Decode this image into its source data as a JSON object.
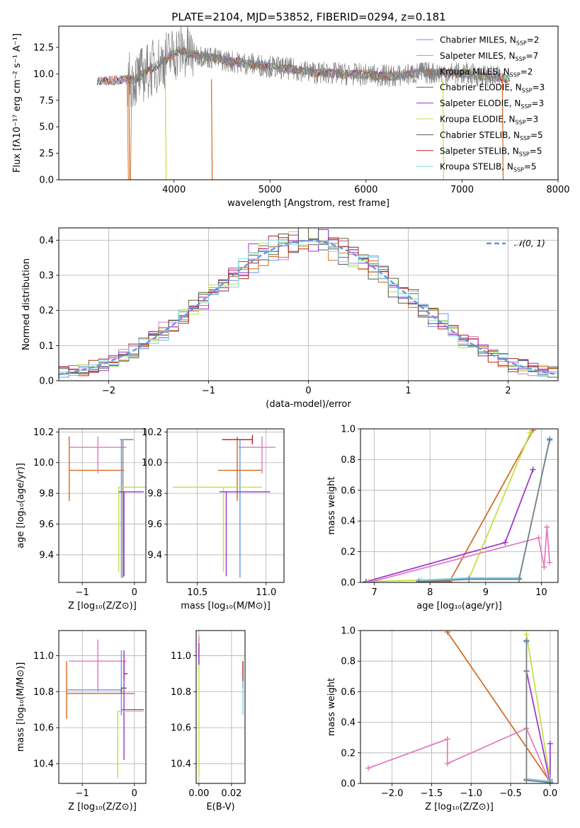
{
  "title": "PLATE=2104, MJD=53852, FIBERID=0294, z=0.181",
  "chart_data": [
    {
      "type": "line",
      "id": "spectrum",
      "xlabel": "wavelength [Angstrom, rest frame]",
      "ylabel": "Flux [fλ10⁻¹⁷ erg cm⁻² s⁻¹ A⁻¹]",
      "xlim": [
        2800,
        8000
      ],
      "ylim": [
        0,
        14.5
      ],
      "xticks": [
        4000,
        5000,
        6000,
        7000,
        8000
      ],
      "yticks": [
        0.0,
        2.5,
        5.0,
        7.5,
        10.0,
        12.5
      ],
      "xtick_labels": [
        "4000",
        "5000",
        "6000",
        "7000",
        "8000"
      ],
      "ytick_labels": [
        "0.0",
        "2.5",
        "5.0",
        "7.5",
        "10.0",
        "12.5"
      ],
      "data_range": [
        3200,
        7500
      ],
      "legend": [
        {
          "name": "Chabrier MILES, N",
          "sub": "SSP",
          "tail": "=2",
          "color": "#6495ed"
        },
        {
          "name": "Salpeter MILES, N",
          "sub": "SSP",
          "tail": "=7",
          "color": "#e377c2"
        },
        {
          "name": "Kroupa MILES, N",
          "sub": "SSP",
          "tail": "=2",
          "color": "#d2691e"
        },
        {
          "name": "Chabrier ELODIE, N",
          "sub": "SSP",
          "tail": "=3",
          "color": "#556b2f"
        },
        {
          "name": "Salpeter ELODIE, N",
          "sub": "SSP",
          "tail": "=3",
          "color": "#9932cc"
        },
        {
          "name": "Kroupa ELODIE, N",
          "sub": "SSP",
          "tail": "=3",
          "color": "#c0e040"
        },
        {
          "name": "Chabrier STELIB, N",
          "sub": "SSP",
          "tail": "=5",
          "color": "#555555"
        },
        {
          "name": "Salpeter STELIB, N",
          "sub": "SSP",
          "tail": "=5",
          "color": "#b22222"
        },
        {
          "name": "Kroupa STELIB, N",
          "sub": "SSP",
          "tail": "=5",
          "color": "#80d8e0"
        }
      ],
      "legend_position": "right"
    },
    {
      "type": "area",
      "id": "histogram",
      "xlabel": "(data-model)/error",
      "ylabel": "Normed distribution",
      "xlim": [
        -2.5,
        2.5
      ],
      "ylim": [
        0,
        0.435
      ],
      "xticks": [
        -2,
        -1,
        0,
        1,
        2
      ],
      "xtick_labels": [
        "−2",
        "−1",
        "0",
        "1",
        "2"
      ],
      "yticks": [
        0.0,
        0.1,
        0.2,
        0.3,
        0.4
      ],
      "ytick_labels": [
        "0.0",
        "0.1",
        "0.2",
        "0.3",
        "0.4"
      ],
      "legend": [
        {
          "name": "𝒩(0, 1)",
          "color": "#6495ed",
          "style": "dashed"
        }
      ],
      "legend_position": "top-right",
      "grid": true
    },
    {
      "type": "scatter",
      "id": "age-vs-Z",
      "xlabel": "Z [log₁₀(Z/Z⊙)]",
      "ylabel": "age  [log₁₀(age/yr)]",
      "xlim": [
        -1.45,
        0.22
      ],
      "ylim": [
        9.22,
        10.22
      ],
      "xticks": [
        -1,
        0
      ],
      "xtick_labels": [
        "−1",
        "0"
      ],
      "yticks": [
        9.4,
        9.6,
        9.8,
        10.0,
        10.2
      ],
      "ytick_labels": [
        "9.4",
        "9.6",
        "9.8",
        "10.0",
        "10.2"
      ],
      "points": [
        {
          "x": -1.25,
          "y": 9.95,
          "xerr": [
            0.0,
            1.05
          ],
          "yerr": [
            0.2,
            0.22
          ],
          "color": "#d2691e"
        },
        {
          "x": -0.7,
          "y": 10.1,
          "xerr": [
            0.55,
            0.55
          ],
          "yerr": [
            0.17,
            0.07
          ],
          "color": "#e377c2"
        },
        {
          "x": -0.25,
          "y": 10.15,
          "xerr": [
            0.03,
            0.22
          ],
          "yerr": [
            0.9,
            0.0
          ],
          "color": "#6495ed"
        },
        {
          "x": -0.22,
          "y": 10.15,
          "xerr": [
            0.0,
            0.2
          ],
          "yerr": [
            0.9,
            0.0
          ],
          "color": "#808080"
        },
        {
          "x": -0.3,
          "y": 9.84,
          "xerr": [
            0.0,
            0.55
          ],
          "yerr": [
            0.55,
            0.0
          ],
          "color": "#c0e040"
        },
        {
          "x": -0.2,
          "y": 9.81,
          "xerr": [
            0.1,
            0.38
          ],
          "yerr": [
            0.55,
            0.0
          ],
          "color": "#9932cc"
        }
      ]
    },
    {
      "type": "scatter",
      "id": "age-vs-mass",
      "xlabel": "mass [log₁₀(M/M⊙)]",
      "ylabel": "",
      "xlim": [
        10.28,
        11.13
      ],
      "ylim": [
        9.22,
        10.22
      ],
      "xticks": [
        10.5,
        11.0
      ],
      "xtick_labels": [
        "10.5",
        "11.0"
      ],
      "yticks": [
        9.4,
        9.6,
        9.8,
        10.0,
        10.2
      ],
      "ytick_labels": [
        "9.4",
        "9.6",
        "9.8",
        "10.0",
        "10.2"
      ],
      "points": [
        {
          "x": 10.79,
          "y": 9.95,
          "xerr": [
            0.14,
            0.18
          ],
          "yerr": [
            0.2,
            0.22
          ],
          "color": "#d2691e"
        },
        {
          "x": 10.97,
          "y": 10.1,
          "xerr": [
            0.17,
            0.1
          ],
          "yerr": [
            0.17,
            0.07
          ],
          "color": "#e377c2"
        },
        {
          "x": 10.81,
          "y": 10.15,
          "xerr": [
            0.12,
            0.08
          ],
          "yerr": [
            0.9,
            0.0
          ],
          "color": "#6495ed"
        },
        {
          "x": 10.9,
          "y": 10.15,
          "xerr": [
            0.22,
            0.0
          ],
          "yerr": [
            0.03,
            0.03
          ],
          "color": "#b22222"
        },
        {
          "x": 10.69,
          "y": 9.84,
          "xerr": [
            0.37,
            0.28
          ],
          "yerr": [
            0.55,
            0.0
          ],
          "color": "#c0e040"
        },
        {
          "x": 10.71,
          "y": 9.81,
          "xerr": [
            0.05,
            0.32
          ],
          "yerr": [
            0.55,
            0.0
          ],
          "color": "#9932cc"
        }
      ]
    },
    {
      "type": "line",
      "id": "massweight-vs-age",
      "xlabel": "age  [log₁₀(age/yr)]",
      "ylabel": "mass weight",
      "xlim": [
        6.75,
        10.3
      ],
      "ylim": [
        0,
        1
      ],
      "xticks": [
        7,
        8,
        9,
        10
      ],
      "xtick_labels": [
        "7",
        "8",
        "9",
        "10"
      ],
      "yticks": [
        0.0,
        0.2,
        0.4,
        0.6,
        0.8,
        1.0
      ],
      "ytick_labels": [
        "0.0",
        "0.2",
        "0.4",
        "0.6",
        "0.8",
        "1.0"
      ],
      "grid": true,
      "series": [
        {
          "color": "#d2691e",
          "x": [
            7.8,
            8.35,
            9.85
          ],
          "y": [
            0.0,
            0.005,
            0.99
          ]
        },
        {
          "color": "#9932cc",
          "x": [
            6.85,
            9.35,
            9.85
          ],
          "y": [
            0.005,
            0.26,
            0.735
          ]
        },
        {
          "color": "#c0e040",
          "x": [
            6.9,
            8.7,
            9.8
          ],
          "y": [
            0.005,
            0.025,
            0.975
          ]
        },
        {
          "color": "#e377c2",
          "x": [
            6.9,
            9.95,
            10.05,
            10.1,
            10.15
          ],
          "y": [
            0.0,
            0.29,
            0.1,
            0.36,
            0.13
          ]
        },
        {
          "color": "#6495ed",
          "x": [
            7.8,
            8.7,
            9.6,
            10.15
          ],
          "y": [
            0.01,
            0.025,
            0.025,
            0.935
          ]
        },
        {
          "color": "#80d8e0",
          "x": [
            7.85,
            8.7,
            9.6,
            10.15
          ],
          "y": [
            0.015,
            0.03,
            0.03,
            0.925
          ]
        },
        {
          "color": "#808080",
          "x": [
            7.8,
            8.7,
            9.6,
            10.15
          ],
          "y": [
            0.005,
            0.02,
            0.02,
            0.93
          ]
        }
      ]
    },
    {
      "type": "scatter",
      "id": "mass-vs-Z",
      "xlabel": "Z [log₁₀(Z/Z⊙)]",
      "ylabel": "mass [log₁₀(M/M⊙)]",
      "xlim": [
        -1.45,
        0.22
      ],
      "ylim": [
        10.29,
        11.14
      ],
      "xticks": [
        -1,
        0
      ],
      "xtick_labels": [
        "−1",
        "0"
      ],
      "yticks": [
        10.4,
        10.6,
        10.8,
        11.0
      ],
      "ytick_labels": [
        "10.4",
        "10.6",
        "10.8",
        "11.0"
      ],
      "points": [
        {
          "x": -1.3,
          "y": 10.79,
          "xerr": [
            0.0,
            1.3
          ],
          "yerr": [
            0.14,
            0.18
          ],
          "color": "#d2691e"
        },
        {
          "x": -0.7,
          "y": 10.97,
          "xerr": [
            0.55,
            0.55
          ],
          "yerr": [
            0.17,
            0.12
          ],
          "color": "#e377c2"
        },
        {
          "x": -0.25,
          "y": 10.81,
          "xerr": [
            1.05,
            0.0
          ],
          "yerr": [
            0.14,
            0.22
          ],
          "color": "#6495ed"
        },
        {
          "x": -0.25,
          "y": 10.82,
          "xerr": [
            0.0,
            0.1
          ],
          "yerr": [
            0.03,
            0.0
          ],
          "color": "#555555"
        },
        {
          "x": -0.2,
          "y": 10.9,
          "xerr": [
            0.0,
            0.07
          ],
          "yerr": [
            0.03,
            0.07
          ],
          "color": "#b22222"
        },
        {
          "x": -0.2,
          "y": 10.7,
          "xerr": [
            0.05,
            0.38
          ],
          "yerr": [
            0.28,
            0.33
          ],
          "color": "#9932cc"
        },
        {
          "x": -0.32,
          "y": 10.69,
          "xerr": [
            0.0,
            0.5
          ],
          "yerr": [
            0.37,
            0.0
          ],
          "color": "#c0e040"
        }
      ]
    },
    {
      "type": "scatter",
      "id": "mass-vs-ebv",
      "xlabel": "E(B-V)",
      "ylabel": "",
      "xlim": [
        -0.0017,
        0.0283
      ],
      "ylim": [
        10.29,
        11.14
      ],
      "xticks": [
        0.0,
        0.02
      ],
      "xtick_labels": [
        "0.00",
        "0.02"
      ],
      "yticks": [
        10.4,
        10.6,
        10.8,
        11.0
      ],
      "ytick_labels": [
        "10.4",
        "10.6",
        "10.8",
        "11.0"
      ],
      "points": [
        {
          "x": 0.0,
          "y": 10.72,
          "yerr": [
            0.39,
            0.4
          ],
          "color": "#c0e040"
        },
        {
          "x": 0.0,
          "y": 11.05,
          "yerr": [
            0.1,
            0.06
          ],
          "color": "#e377c2"
        },
        {
          "x": 0.0,
          "y": 11.0,
          "yerr": [
            0.05,
            0.07
          ],
          "color": "#9932cc"
        },
        {
          "x": 0.027,
          "y": 10.9,
          "yerr": [
            0.08,
            0.07
          ],
          "color": "#b22222"
        },
        {
          "x": 0.027,
          "y": 10.78,
          "yerr": [
            0.11,
            0.08
          ],
          "color": "#80d8e0"
        }
      ]
    },
    {
      "type": "line",
      "id": "massweight-vs-Z",
      "xlabel": "Z [log₁₀(Z/Z⊙)]",
      "ylabel": "mass weight",
      "xlim": [
        -2.4,
        0.1
      ],
      "ylim": [
        0,
        1
      ],
      "xticks": [
        -2.0,
        -1.5,
        -1.0,
        -0.5,
        0.0
      ],
      "xtick_labels": [
        "−2.0",
        "−1.5",
        "−1.0",
        "−0.5",
        "0.0"
      ],
      "yticks": [
        0.0,
        0.2,
        0.4,
        0.6,
        0.8,
        1.0
      ],
      "ytick_labels": [
        "0.0",
        "0.2",
        "0.4",
        "0.6",
        "0.8",
        "1.0"
      ],
      "grid": true,
      "series": [
        {
          "color": "#d2691e",
          "x": [
            -1.3,
            0.0
          ],
          "y": [
            0.99,
            0.01
          ]
        },
        {
          "color": "#e377c2",
          "x": [
            -2.3,
            -1.3,
            -1.3,
            -0.3,
            0.0
          ],
          "y": [
            0.1,
            0.29,
            0.13,
            0.36,
            0.0
          ]
        },
        {
          "color": "#9932cc",
          "x": [
            -0.3,
            0.0,
            0.0
          ],
          "y": [
            0.735,
            0.005,
            0.26
          ]
        },
        {
          "color": "#c0e040",
          "x": [
            -0.3,
            0.0,
            0.0
          ],
          "y": [
            0.975,
            0.025,
            0.005
          ]
        },
        {
          "color": "#6495ed",
          "x": [
            -0.3,
            -0.3,
            0.0,
            0.0
          ],
          "y": [
            0.935,
            0.025,
            0.01,
            0.025
          ]
        },
        {
          "color": "#80d8e0",
          "x": [
            -0.3,
            -0.3,
            0.0
          ],
          "y": [
            0.925,
            0.03,
            0.015
          ]
        },
        {
          "color": "#808080",
          "x": [
            -0.3,
            -0.3,
            0.0
          ],
          "y": [
            0.93,
            0.02,
            0.005
          ]
        }
      ]
    }
  ]
}
